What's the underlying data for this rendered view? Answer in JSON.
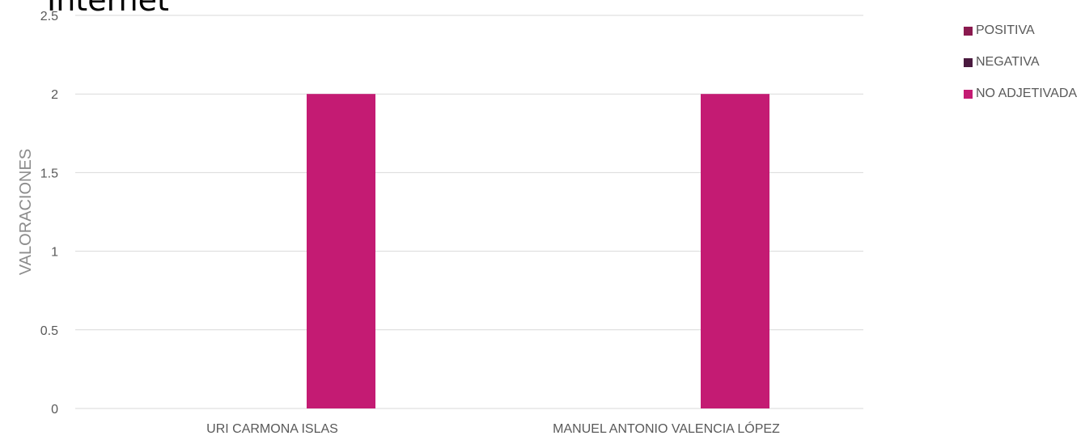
{
  "page_title": "Internet",
  "chart_data": {
    "type": "bar",
    "title": "Internet",
    "xlabel": "",
    "ylabel": "VALORACIONES",
    "categories": [
      "URI CARMONA ISLAS",
      "MANUEL ANTONIO VALENCIA LÓPEZ"
    ],
    "series": [
      {
        "name": "POSITIVA",
        "values": [
          0,
          0
        ],
        "color": "#8a1a4f"
      },
      {
        "name": "NEGATIVA",
        "values": [
          0,
          0
        ],
        "color": "#4a1a3f"
      },
      {
        "name": "NO ADJETIVADA",
        "values": [
          2,
          2
        ],
        "color": "#c41b73"
      }
    ],
    "ylim": [
      0,
      2.5
    ],
    "yticks": [
      "0",
      "0.5",
      "1",
      "1.5",
      "2",
      "2.5"
    ],
    "ytick_values": [
      0,
      0.5,
      1,
      1.5,
      2,
      2.5
    ],
    "grid": true,
    "legend_position": "top-right"
  }
}
